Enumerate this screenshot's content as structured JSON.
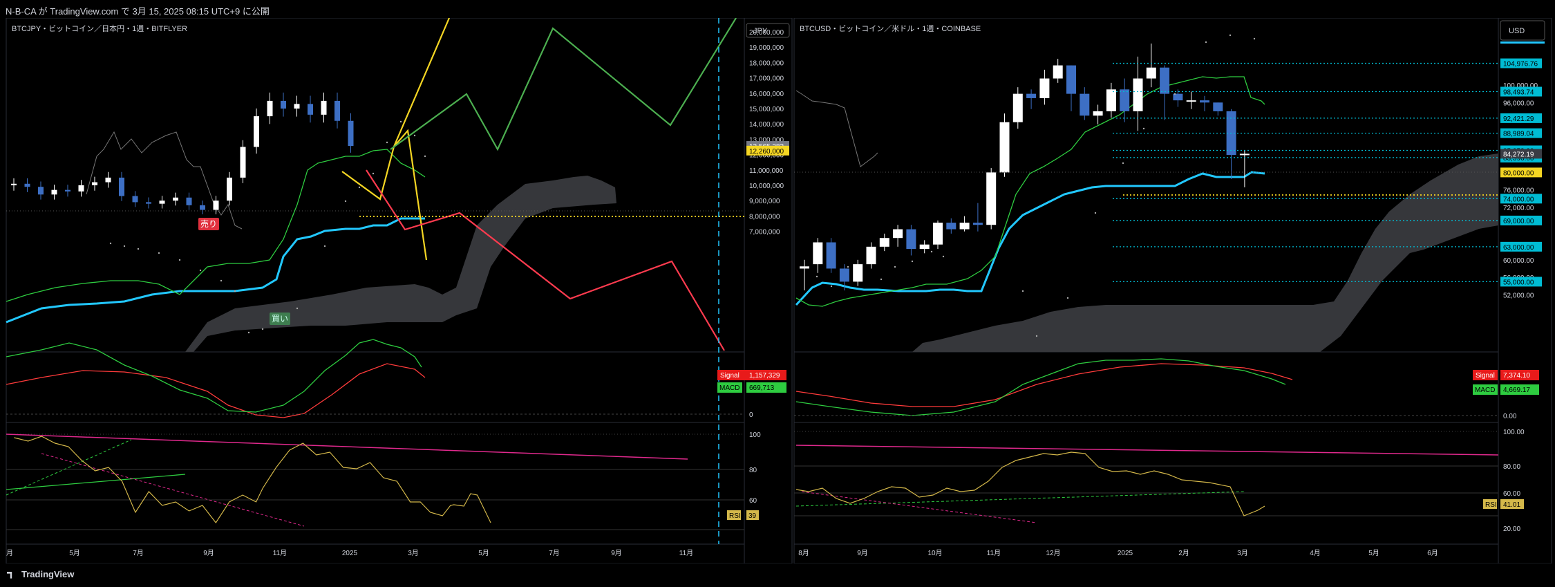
{
  "header": {
    "publish_text": "N-B-CA が TradingView.com で 3月 15, 2025 08:15 UTC+9 に公開"
  },
  "footer": {
    "logo_text": "TradingView"
  },
  "colors": {
    "background": "#000000",
    "grid": "#1e222d",
    "candle_up": "#ffffff",
    "candle_down": "#3d6fc4",
    "kijun": "#22c8ff",
    "tenkan": "#2ecc40",
    "signal": "#ff3b3b",
    "macd": "#2ecc40",
    "rsi": "#d4b84a",
    "rsi_trend": "#e0298d",
    "cloud": "#3a3a3e",
    "forecast_up": "#f5d623",
    "forecast_green": "#4caf50",
    "forecast_red": "#ff3b4f",
    "level_line": "#00bcd4"
  },
  "chart_data": [
    {
      "type": "candlestick",
      "title": "BTCJPY・ビットコイン／日本円・1週・BITFLYER",
      "currency": "JPY",
      "x_tick_labels": [
        "5月",
        "7月",
        "9月",
        "11月",
        "2025",
        "3月",
        "5月",
        "7月",
        "9月",
        "11月"
      ],
      "x_tick_first": "月",
      "ylim": [
        6300000,
        20600000
      ],
      "y_tick_labels": [
        "20,000,000",
        "19,000,000",
        "18,000,000",
        "17,000,000",
        "16,000,000",
        "15,000,000",
        "14,000,000",
        "13,000,000",
        "12,000,000",
        "11,000,000",
        "10,000,000",
        "9,000,000",
        "8,000,000",
        "7,000,000"
      ],
      "y_tick_values": [
        20000000,
        19000000,
        18000000,
        17000000,
        16000000,
        15000000,
        14000000,
        13000000,
        12000000,
        11000000,
        10000000,
        9000000,
        8000000,
        7000000
      ],
      "price_tags": [
        {
          "label": "12,565,282",
          "value": 12565282,
          "color": "#787b86"
        },
        {
          "label": "12,260,000",
          "value": 12260000,
          "color": "#f5d623"
        }
      ],
      "annotations": [
        {
          "text": "売り",
          "color": "#e0303e"
        },
        {
          "text": "買い",
          "color": "#3e7d4f"
        }
      ],
      "macd": {
        "signal_label": "Signal",
        "signal_value": "1,157,329",
        "macd_label": "MACD",
        "macd_value": "669,713",
        "zero_label": "0"
      },
      "rsi": {
        "label": "RSI",
        "value": "39",
        "ticks": [
          "100",
          "80",
          "60"
        ]
      },
      "closes_approx": [
        10100000,
        9900000,
        9400000,
        9700000,
        9600000,
        10000000,
        10200000,
        10500000,
        9300000,
        8900000,
        8800000,
        9000000,
        9200000,
        8700000,
        8400000,
        9000000,
        10500000,
        12500000,
        14500000,
        15500000,
        15000000,
        15300000,
        14600000,
        15500000,
        14200000,
        12565282
      ]
    },
    {
      "type": "candlestick",
      "title": "BTCUSD・ビットコイン／米ドル・1週・COINBASE",
      "currency": "USD",
      "x_tick_labels": [
        "8月",
        "9月",
        "10月",
        "11月",
        "12月",
        "2025",
        "2月",
        "3月",
        "4月",
        "5月",
        "6月"
      ],
      "ylim": [
        52000,
        110000
      ],
      "y_tick_labels": [
        "100,000.00",
        "96,000.00",
        "76,000.00",
        "72,000.00",
        "60,000.00",
        "56,000.00",
        "52,000.00"
      ],
      "y_tick_values": [
        100000,
        96000,
        76000,
        72000,
        60000,
        56000,
        52000
      ],
      "levels": [
        {
          "label": "104,976.76",
          "value": 104976.76
        },
        {
          "label": "98,493.74",
          "value": 98493.74
        },
        {
          "label": "92,421.29",
          "value": 92421.29
        },
        {
          "label": "88,989.04",
          "value": 88989.04
        },
        {
          "label": "85,053.00",
          "value": 85053
        },
        {
          "label": "83,396.00",
          "value": 83396
        },
        {
          "label": "74,000.00",
          "value": 74000
        },
        {
          "label": "69,000.00",
          "value": 69000
        },
        {
          "label": "63,000.00",
          "value": 63000
        },
        {
          "label": "55,000.00",
          "value": 55000
        }
      ],
      "price_tags": [
        {
          "label": "84,272.19",
          "value": 84272.19,
          "color": "#3a3d45"
        },
        {
          "label": "80,000.00",
          "value": 80000,
          "color": "#f5d623"
        }
      ],
      "macd": {
        "signal_label": "Signal",
        "signal_value": "7,374.10",
        "macd_label": "MACD",
        "macd_value": "4,669.17",
        "zero_label": "0.00"
      },
      "rsi": {
        "label": "RSI",
        "value": "41.01",
        "ticks": [
          "100.00",
          "80.00",
          "60.00",
          "20.00"
        ]
      },
      "candles_approx": [
        {
          "o": 58000,
          "c": 58500,
          "h": 60000,
          "l": 53000
        },
        {
          "o": 59000,
          "c": 64000,
          "h": 65000,
          "l": 57000
        },
        {
          "o": 64000,
          "c": 58000,
          "h": 65000,
          "l": 57000
        },
        {
          "o": 58000,
          "c": 55000,
          "h": 59000,
          "l": 53000
        },
        {
          "o": 55000,
          "c": 59000,
          "h": 60000,
          "l": 54000
        },
        {
          "o": 59000,
          "c": 63000,
          "h": 64000,
          "l": 58000
        },
        {
          "o": 63000,
          "c": 65000,
          "h": 66000,
          "l": 62000
        },
        {
          "o": 65000,
          "c": 67000,
          "h": 68000,
          "l": 63000
        },
        {
          "o": 67000,
          "c": 62500,
          "h": 68000,
          "l": 61000
        },
        {
          "o": 62500,
          "c": 63500,
          "h": 64500,
          "l": 61500
        },
        {
          "o": 63500,
          "c": 68500,
          "h": 69000,
          "l": 62500
        },
        {
          "o": 68500,
          "c": 67000,
          "h": 69500,
          "l": 66000
        },
        {
          "o": 67000,
          "c": 68500,
          "h": 70000,
          "l": 66500
        },
        {
          "o": 68500,
          "c": 68000,
          "h": 73000,
          "l": 66500
        },
        {
          "o": 68000,
          "c": 80000,
          "h": 81000,
          "l": 67000
        },
        {
          "o": 80000,
          "c": 91500,
          "h": 93500,
          "l": 79000
        },
        {
          "o": 91500,
          "c": 98000,
          "h": 99500,
          "l": 90000
        },
        {
          "o": 98000,
          "c": 97000,
          "h": 99000,
          "l": 94500
        },
        {
          "o": 97000,
          "c": 101500,
          "h": 103500,
          "l": 95500
        },
        {
          "o": 101500,
          "c": 104500,
          "h": 106000,
          "l": 100500
        },
        {
          "o": 104500,
          "c": 98000,
          "h": 104500,
          "l": 94000
        },
        {
          "o": 98000,
          "c": 93000,
          "h": 99500,
          "l": 92000
        },
        {
          "o": 93000,
          "c": 94000,
          "h": 95500,
          "l": 91000
        },
        {
          "o": 94000,
          "c": 99000,
          "h": 100500,
          "l": 92500
        },
        {
          "o": 99000,
          "c": 94000,
          "h": 101500,
          "l": 91500
        },
        {
          "o": 94000,
          "c": 101500,
          "h": 106500,
          "l": 89500
        },
        {
          "o": 101500,
          "c": 104000,
          "h": 109500,
          "l": 99500
        },
        {
          "o": 104000,
          "c": 98000,
          "h": 104500,
          "l": 92000
        },
        {
          "o": 98000,
          "c": 96500,
          "h": 99000,
          "l": 95000
        },
        {
          "o": 96500,
          "c": 96500,
          "h": 98500,
          "l": 94500
        },
        {
          "o": 96500,
          "c": 96000,
          "h": 97500,
          "l": 94000
        },
        {
          "o": 96000,
          "c": 94000,
          "h": 96000,
          "l": 93000
        },
        {
          "o": 94000,
          "c": 84000,
          "h": 94500,
          "l": 78500
        },
        {
          "o": 84000,
          "c": 84272,
          "h": 85000,
          "l": 76600
        }
      ]
    }
  ]
}
